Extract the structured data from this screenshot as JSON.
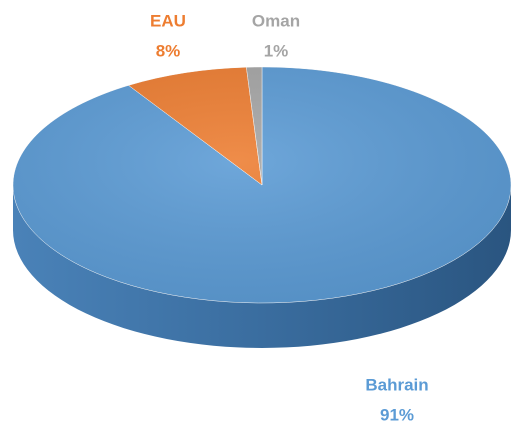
{
  "chart_data": {
    "type": "pie",
    "categories": [
      "Bahrain",
      "EAU",
      "Oman"
    ],
    "values": [
      91,
      8,
      1
    ],
    "value_labels": [
      "91%",
      "8%",
      "1%"
    ],
    "colors": [
      "#5b9bd5",
      "#ed7d31",
      "#a5a5a5"
    ]
  }
}
